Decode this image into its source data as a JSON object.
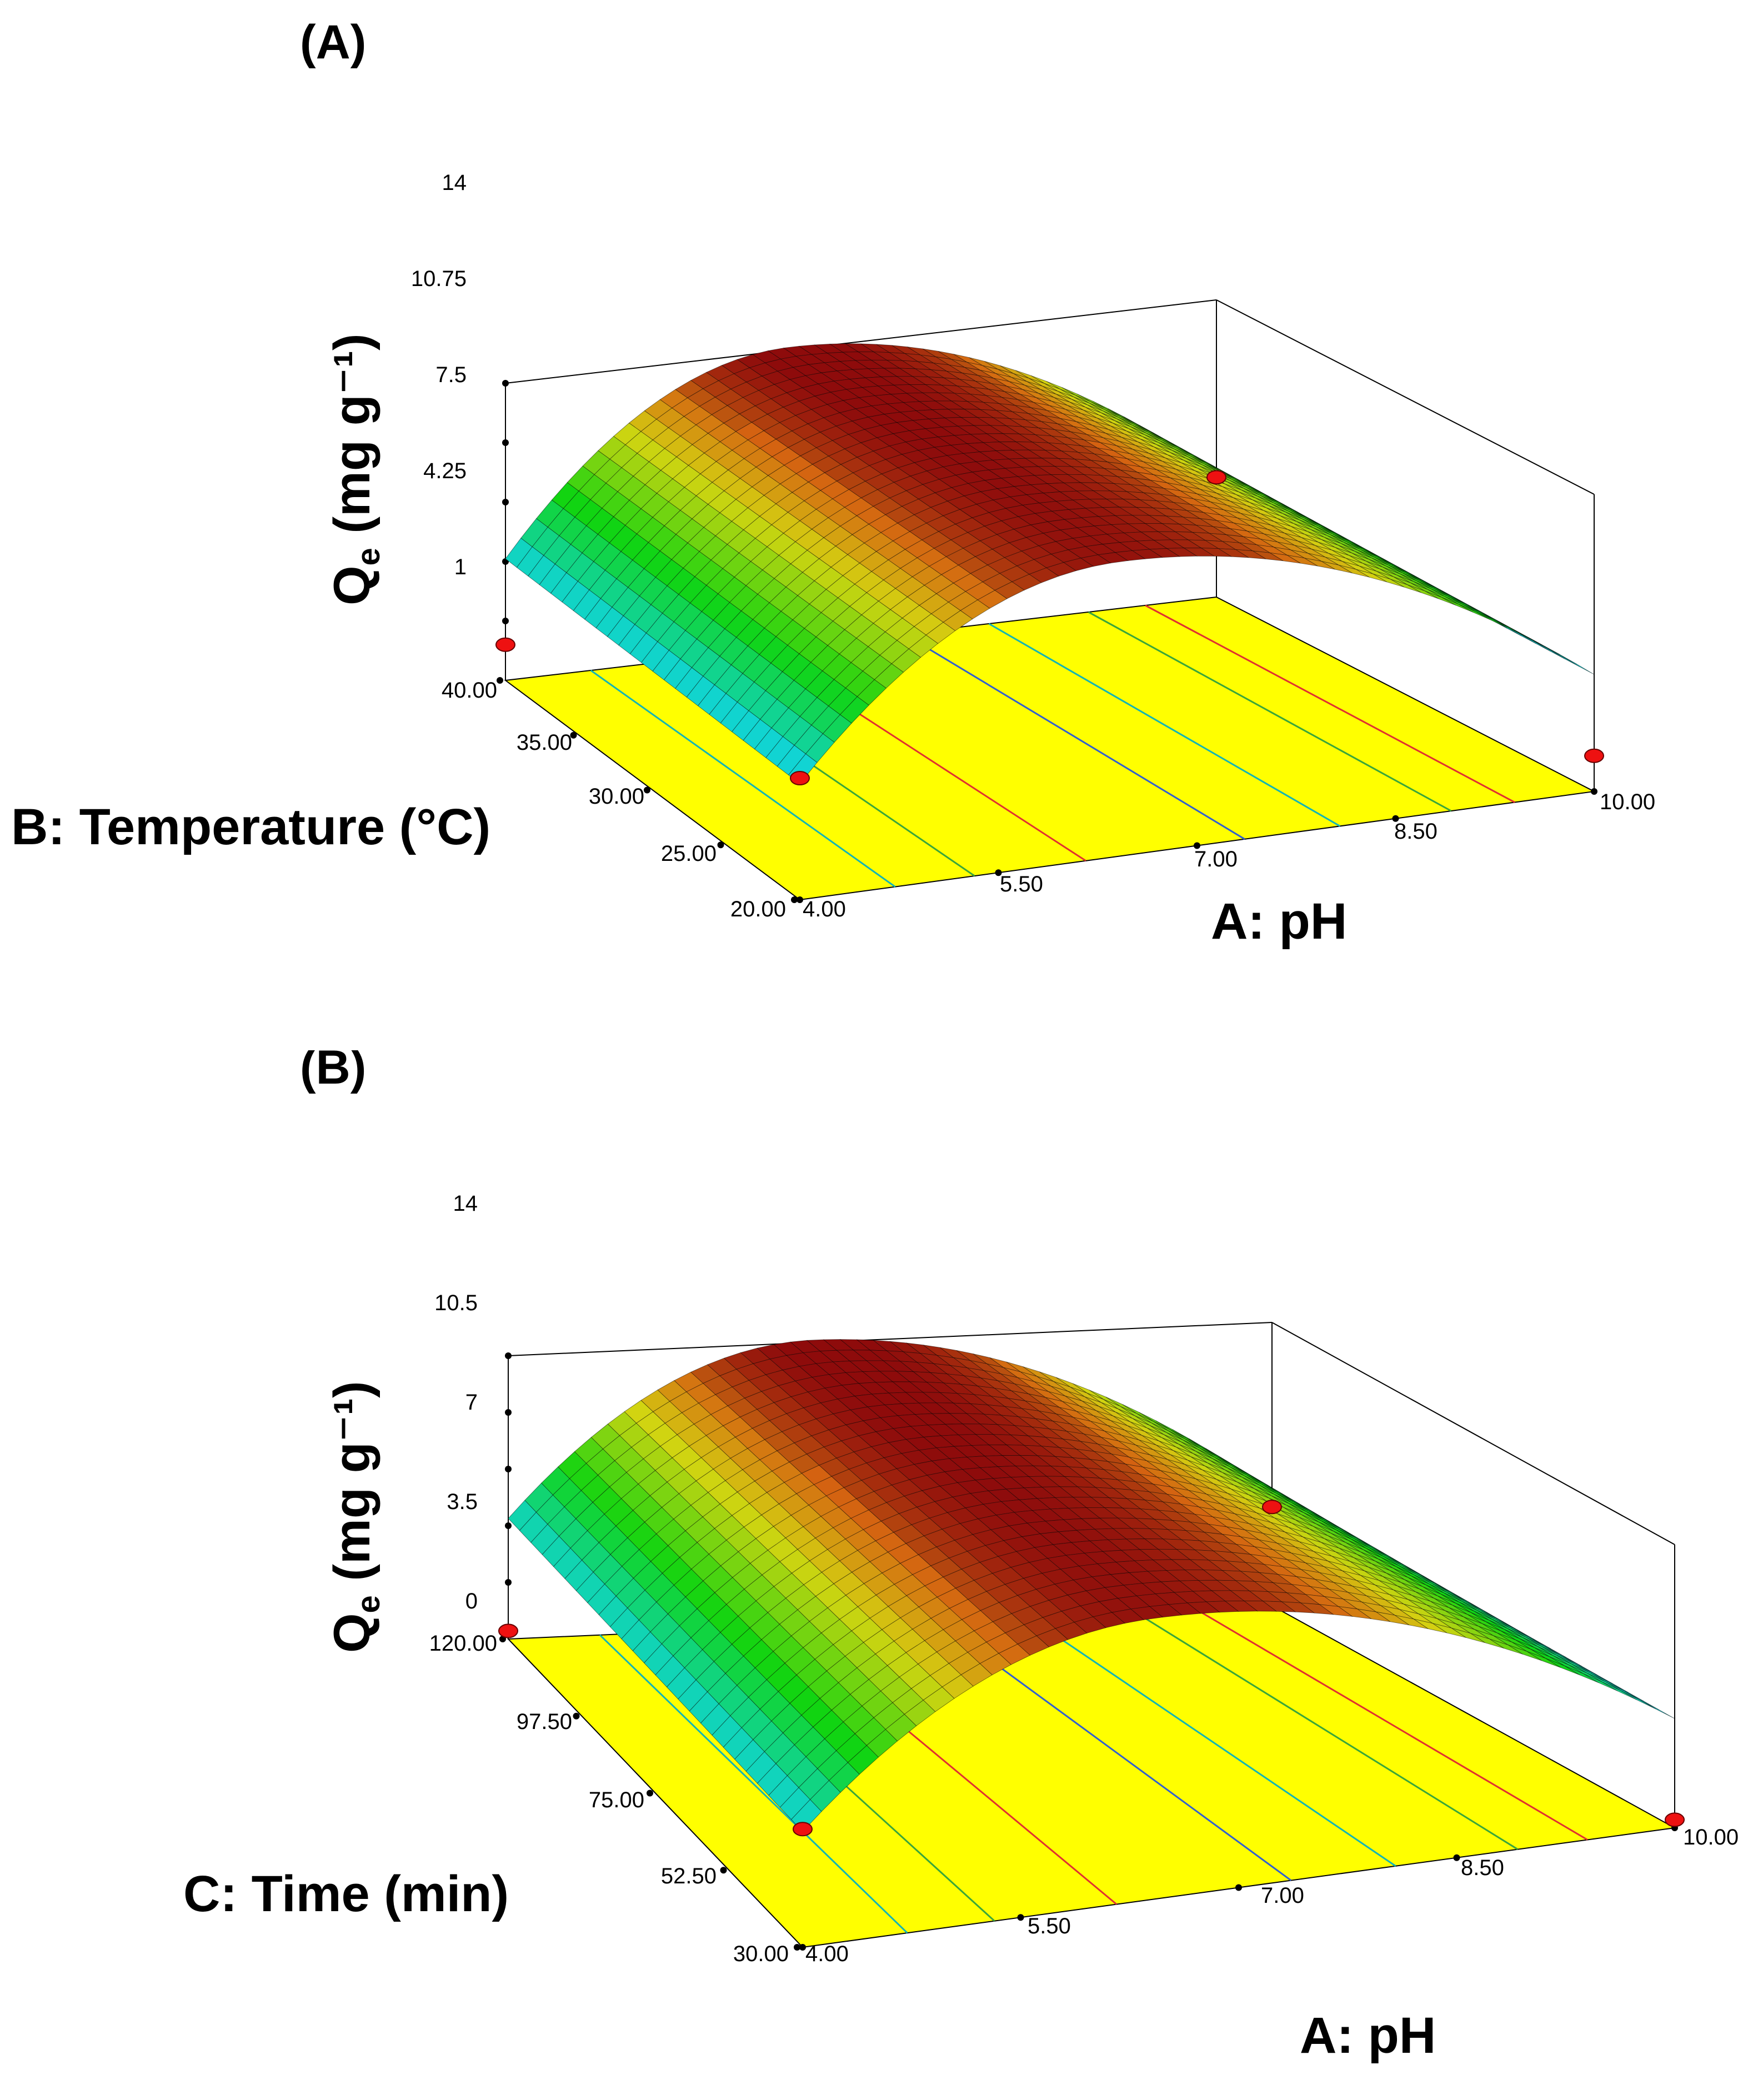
{
  "chart_data": [
    {
      "type": "surface3d",
      "panel_label": "(A)",
      "zlabel_main": "Q",
      "zlabel_sub": "e",
      "zlabel_unit": "(mg g⁻¹)",
      "xlabel": "A: pH",
      "ylabel": "B: Temperature (°C)",
      "x_ticks": [
        "4.00",
        "5.50",
        "7.00",
        "8.50",
        "10.00"
      ],
      "y_ticks": [
        "20.00",
        "25.00",
        "30.00",
        "35.00",
        "40.00"
      ],
      "z_ticks": [
        "1",
        "4.25",
        "7.5",
        "10.75",
        "14"
      ],
      "x_range": [
        4,
        10
      ],
      "y_range": [
        20,
        40
      ],
      "z_range": [
        -2.25,
        14
      ],
      "peak": {
        "x": 6.4,
        "qe": 14.0
      },
      "corner_values": {
        "x_low": 4.25,
        "x_high": 4.3
      },
      "design_points": [
        {
          "x": 4.0,
          "y": 20.0,
          "qe": 4.4
        },
        {
          "x": 4.0,
          "y": 40.0,
          "qe": -0.3
        },
        {
          "x": 10.0,
          "y": 40.0,
          "qe": 4.3
        },
        {
          "x": 10.0,
          "y": 20.0,
          "qe": -0.3
        }
      ]
    },
    {
      "type": "surface3d",
      "panel_label": "(B)",
      "zlabel_main": "Q",
      "zlabel_sub": "e",
      "zlabel_unit": "(mg g⁻¹)",
      "xlabel": "A: pH",
      "ylabel": "C: Time (min)",
      "x_ticks": [
        "4.00",
        "5.50",
        "7.00",
        "8.50",
        "10.00"
      ],
      "y_ticks": [
        "30.00",
        "52.50",
        "75.00",
        "97.50",
        "120.00"
      ],
      "z_ticks": [
        "0",
        "3.5",
        "7",
        "10.5",
        "14"
      ],
      "x_range": [
        4,
        10
      ],
      "y_range": [
        30,
        120
      ],
      "z_range": [
        -3.5,
        14
      ],
      "peak": {
        "x": 6.4,
        "qe": 14.0
      },
      "corner_values": {
        "x_low": 3.8,
        "x_high": 3.4
      },
      "design_points": [
        {
          "x": 4.0,
          "y": 30.0,
          "qe": 3.8
        },
        {
          "x": 4.0,
          "y": 120.0,
          "qe": -3.0
        },
        {
          "x": 10.0,
          "y": 120.0,
          "qe": 2.6
        },
        {
          "x": 10.0,
          "y": 30.0,
          "qe": -3.0
        }
      ]
    }
  ]
}
